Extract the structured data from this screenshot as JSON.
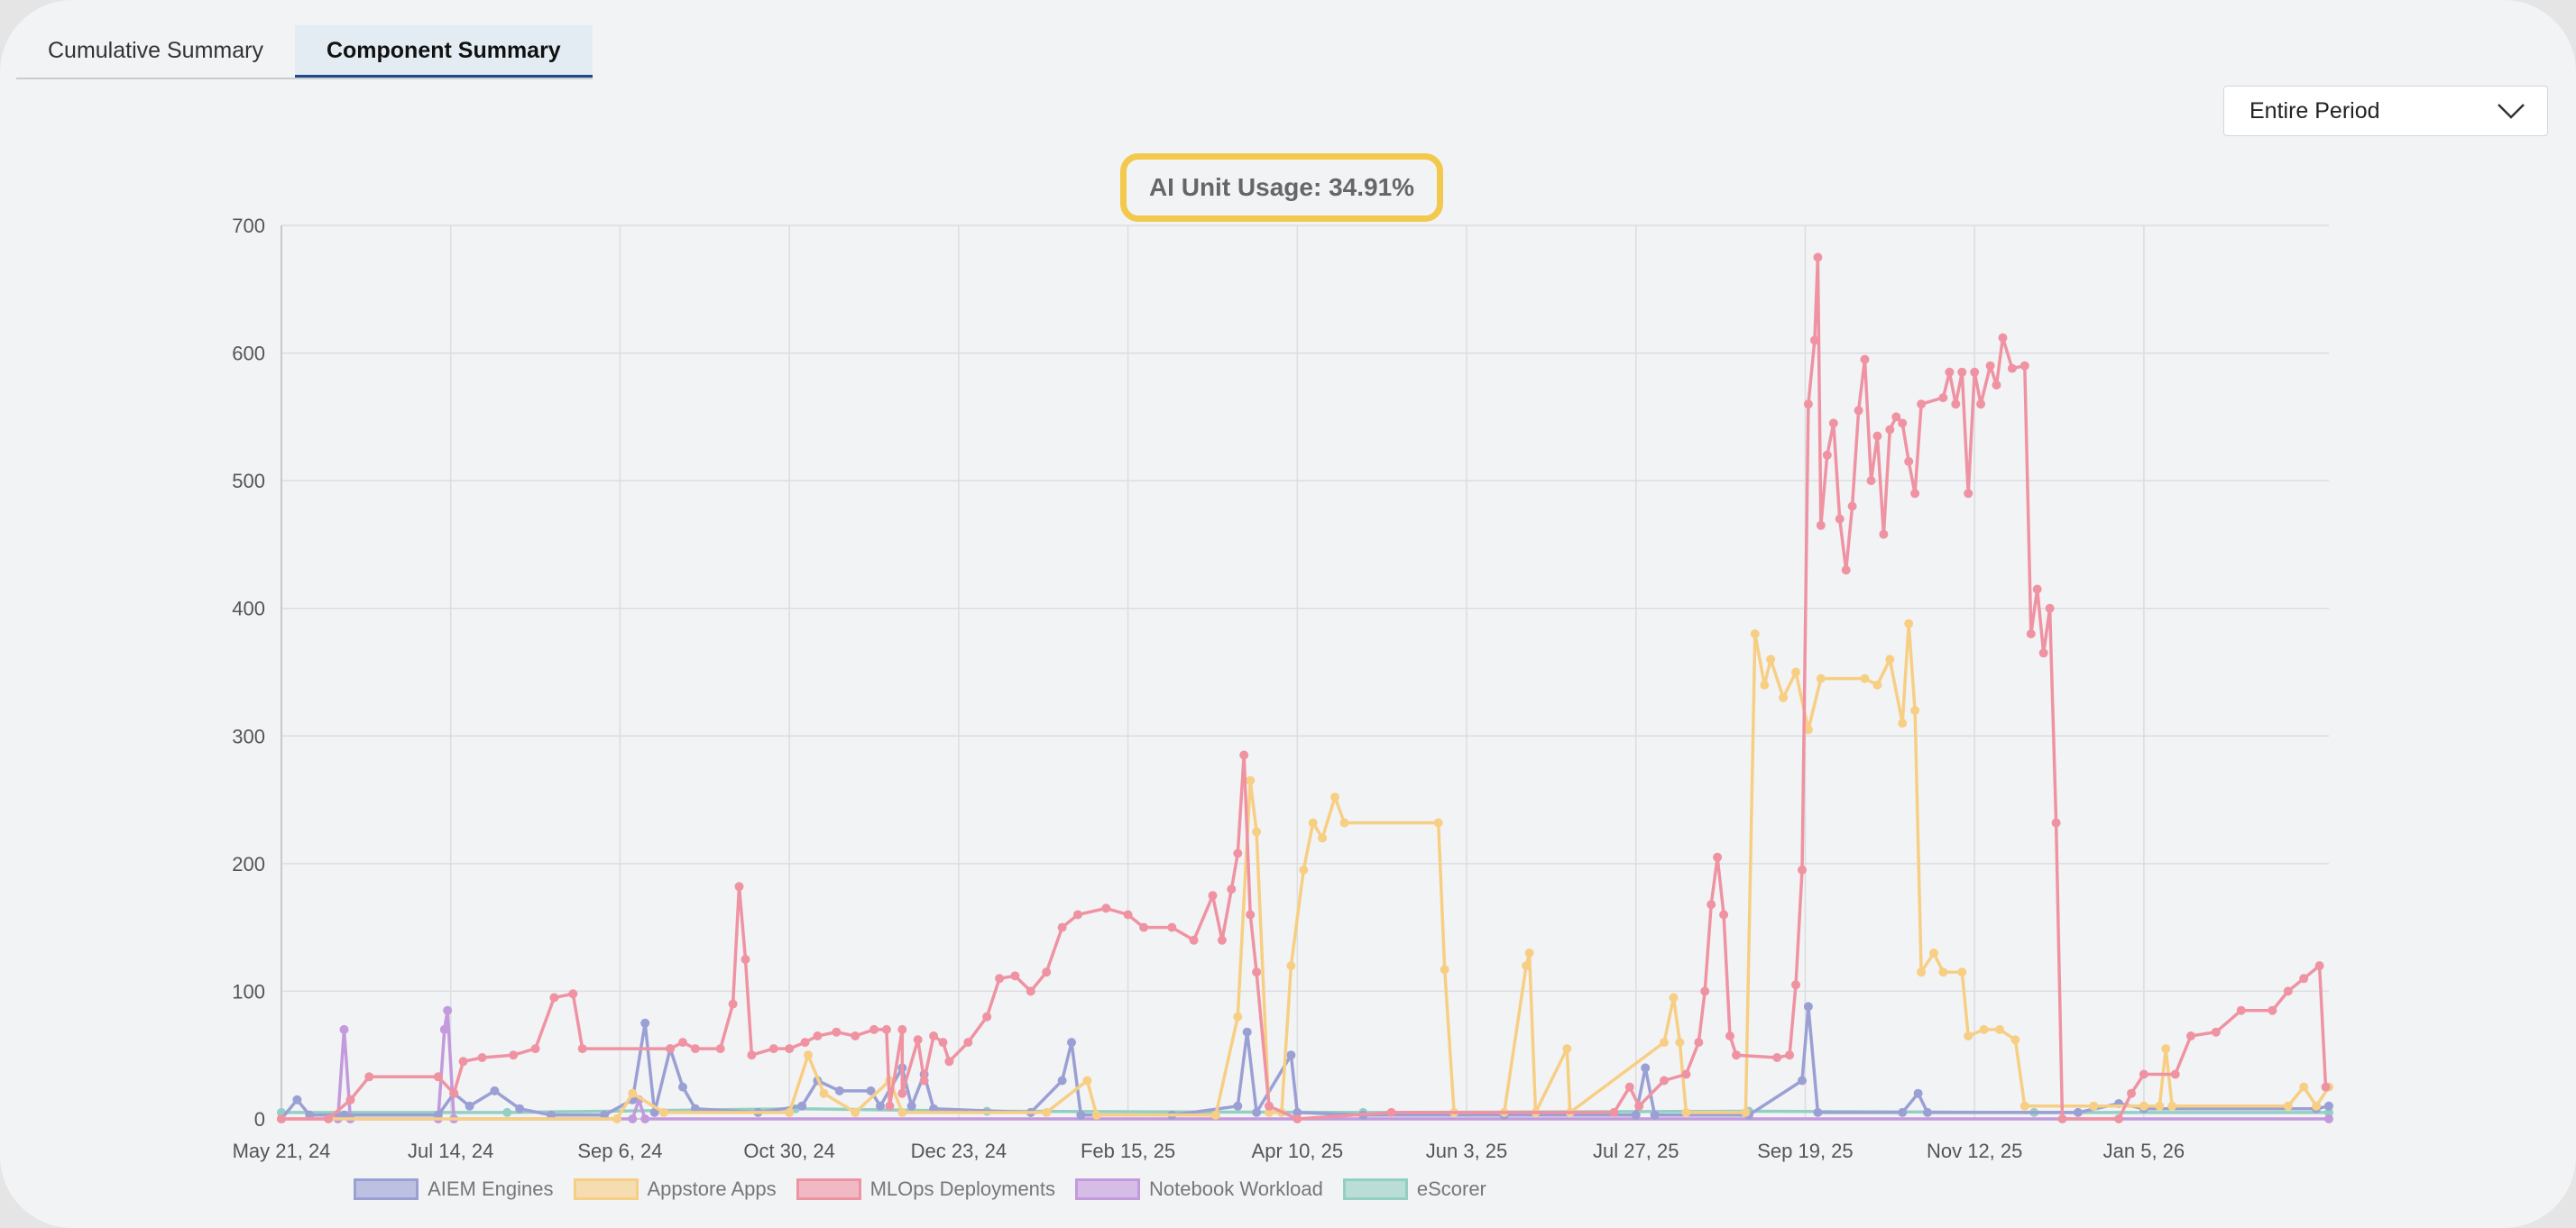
{
  "tabs": [
    {
      "label": "Cumulative Summary",
      "active": false
    },
    {
      "label": "Component Summary",
      "active": true
    }
  ],
  "period_select": {
    "value": "Entire Period"
  },
  "chart_data": {
    "type": "line",
    "title": "AI Unit Usage: 34.91%",
    "xlabel": "",
    "ylabel": "",
    "x_range": [
      "2024-05-21",
      "2026-03-05"
    ],
    "ylim": [
      0,
      700
    ],
    "y_ticks": [
      0,
      100,
      200,
      300,
      400,
      500,
      600,
      700
    ],
    "x_ticks": [
      {
        "date": "2024-05-21",
        "label": "May 21, 24"
      },
      {
        "date": "2024-07-14",
        "label": "Jul 14, 24"
      },
      {
        "date": "2024-09-06",
        "label": "Sep 6, 24"
      },
      {
        "date": "2024-10-30",
        "label": "Oct 30, 24"
      },
      {
        "date": "2024-12-23",
        "label": "Dec 23, 24"
      },
      {
        "date": "2025-02-15",
        "label": "Feb 15, 25"
      },
      {
        "date": "2025-04-10",
        "label": "Apr 10, 25"
      },
      {
        "date": "2025-06-03",
        "label": "Jun 3, 25"
      },
      {
        "date": "2025-07-27",
        "label": "Jul 27, 25"
      },
      {
        "date": "2025-09-19",
        "label": "Sep 19, 25"
      },
      {
        "date": "2025-11-12",
        "label": "Nov 12, 25"
      },
      {
        "date": "2026-01-05",
        "label": "Jan 5, 26"
      }
    ],
    "grid": true,
    "legend_position": "bottom",
    "series": [
      {
        "name": "AIEM Engines",
        "color": "#9aa0d4",
        "points": [
          [
            "2024-05-21",
            0
          ],
          [
            "2024-05-26",
            15
          ],
          [
            "2024-05-30",
            3
          ],
          [
            "2024-06-10",
            3
          ],
          [
            "2024-07-10",
            3
          ],
          [
            "2024-07-15",
            20
          ],
          [
            "2024-07-20",
            10
          ],
          [
            "2024-07-28",
            22
          ],
          [
            "2024-08-05",
            8
          ],
          [
            "2024-08-15",
            3
          ],
          [
            "2024-09-01",
            3
          ],
          [
            "2024-09-10",
            15
          ],
          [
            "2024-09-14",
            75
          ],
          [
            "2024-09-17",
            5
          ],
          [
            "2024-09-22",
            55
          ],
          [
            "2024-09-26",
            25
          ],
          [
            "2024-09-30",
            8
          ],
          [
            "2024-10-20",
            5
          ],
          [
            "2024-11-03",
            10
          ],
          [
            "2024-11-08",
            30
          ],
          [
            "2024-11-15",
            22
          ],
          [
            "2024-11-25",
            22
          ],
          [
            "2024-11-28",
            10
          ],
          [
            "2024-12-05",
            40
          ],
          [
            "2024-12-08",
            10
          ],
          [
            "2024-12-12",
            35
          ],
          [
            "2024-12-15",
            8
          ],
          [
            "2025-01-15",
            5
          ],
          [
            "2025-01-25",
            30
          ],
          [
            "2025-01-28",
            60
          ],
          [
            "2025-01-31",
            3
          ],
          [
            "2025-03-01",
            3
          ],
          [
            "2025-03-22",
            10
          ],
          [
            "2025-03-25",
            68
          ],
          [
            "2025-03-28",
            5
          ],
          [
            "2025-04-08",
            50
          ],
          [
            "2025-04-10",
            5
          ],
          [
            "2025-05-01",
            3
          ],
          [
            "2025-06-15",
            3
          ],
          [
            "2025-07-27",
            3
          ],
          [
            "2025-07-30",
            40
          ],
          [
            "2025-08-02",
            3
          ],
          [
            "2025-09-01",
            3
          ],
          [
            "2025-09-18",
            30
          ],
          [
            "2025-09-20",
            88
          ],
          [
            "2025-09-23",
            5
          ],
          [
            "2025-10-20",
            5
          ],
          [
            "2025-10-25",
            20
          ],
          [
            "2025-10-28",
            5
          ],
          [
            "2025-12-15",
            5
          ],
          [
            "2025-12-28",
            12
          ],
          [
            "2026-01-05",
            8
          ],
          [
            "2026-03-01",
            8
          ],
          [
            "2026-03-05",
            10
          ]
        ]
      },
      {
        "name": "Appstore Apps",
        "color": "#f7cf84",
        "points": [
          [
            "2024-05-21",
            0
          ],
          [
            "2024-09-05",
            0
          ],
          [
            "2024-09-10",
            20
          ],
          [
            "2024-09-20",
            5
          ],
          [
            "2024-10-30",
            5
          ],
          [
            "2024-11-05",
            50
          ],
          [
            "2024-11-10",
            20
          ],
          [
            "2024-11-20",
            5
          ],
          [
            "2024-12-01",
            30
          ],
          [
            "2024-12-05",
            5
          ],
          [
            "2025-01-20",
            5
          ],
          [
            "2025-02-02",
            30
          ],
          [
            "2025-02-05",
            3
          ],
          [
            "2025-03-15",
            3
          ],
          [
            "2025-03-22",
            80
          ],
          [
            "2025-03-26",
            265
          ],
          [
            "2025-03-28",
            225
          ],
          [
            "2025-04-01",
            5
          ],
          [
            "2025-04-05",
            5
          ],
          [
            "2025-04-08",
            120
          ],
          [
            "2025-04-12",
            195
          ],
          [
            "2025-04-15",
            232
          ],
          [
            "2025-04-18",
            220
          ],
          [
            "2025-04-22",
            252
          ],
          [
            "2025-04-25",
            232
          ],
          [
            "2025-05-25",
            232
          ],
          [
            "2025-05-27",
            117
          ],
          [
            "2025-05-30",
            5
          ],
          [
            "2025-06-15",
            5
          ],
          [
            "2025-06-22",
            120
          ],
          [
            "2025-06-23",
            130
          ],
          [
            "2025-06-25",
            5
          ],
          [
            "2025-07-05",
            55
          ],
          [
            "2025-07-06",
            5
          ],
          [
            "2025-08-05",
            60
          ],
          [
            "2025-08-08",
            95
          ],
          [
            "2025-08-10",
            60
          ],
          [
            "2025-08-12",
            5
          ],
          [
            "2025-08-31",
            5
          ],
          [
            "2025-09-03",
            380
          ],
          [
            "2025-09-06",
            340
          ],
          [
            "2025-09-08",
            360
          ],
          [
            "2025-09-12",
            330
          ],
          [
            "2025-09-16",
            350
          ],
          [
            "2025-09-20",
            305
          ],
          [
            "2025-09-24",
            345
          ],
          [
            "2025-10-08",
            345
          ],
          [
            "2025-10-12",
            340
          ],
          [
            "2025-10-16",
            360
          ],
          [
            "2025-10-20",
            310
          ],
          [
            "2025-10-22",
            388
          ],
          [
            "2025-10-24",
            320
          ],
          [
            "2025-10-26",
            115
          ],
          [
            "2025-10-30",
            130
          ],
          [
            "2025-11-02",
            115
          ],
          [
            "2025-11-08",
            115
          ],
          [
            "2025-11-10",
            65
          ],
          [
            "2025-11-15",
            70
          ],
          [
            "2025-11-20",
            70
          ],
          [
            "2025-11-25",
            62
          ],
          [
            "2025-11-28",
            10
          ],
          [
            "2025-12-20",
            10
          ],
          [
            "2026-01-05",
            10
          ],
          [
            "2026-01-10",
            10
          ],
          [
            "2026-01-12",
            55
          ],
          [
            "2026-01-14",
            10
          ],
          [
            "2026-02-20",
            10
          ],
          [
            "2026-02-25",
            25
          ],
          [
            "2026-03-01",
            10
          ],
          [
            "2026-03-05",
            25
          ]
        ]
      },
      {
        "name": "MLOps Deployments",
        "color": "#ef93a3",
        "points": [
          [
            "2024-05-21",
            0
          ],
          [
            "2024-06-05",
            0
          ],
          [
            "2024-06-12",
            15
          ],
          [
            "2024-06-18",
            33
          ],
          [
            "2024-07-10",
            33
          ],
          [
            "2024-07-15",
            20
          ],
          [
            "2024-07-18",
            45
          ],
          [
            "2024-07-24",
            48
          ],
          [
            "2024-08-03",
            50
          ],
          [
            "2024-08-10",
            55
          ],
          [
            "2024-08-16",
            95
          ],
          [
            "2024-08-22",
            98
          ],
          [
            "2024-08-25",
            55
          ],
          [
            "2024-09-22",
            55
          ],
          [
            "2024-09-26",
            60
          ],
          [
            "2024-09-30",
            55
          ],
          [
            "2024-10-08",
            55
          ],
          [
            "2024-10-12",
            90
          ],
          [
            "2024-10-14",
            182
          ],
          [
            "2024-10-16",
            125
          ],
          [
            "2024-10-18",
            50
          ],
          [
            "2024-10-25",
            55
          ],
          [
            "2024-10-30",
            55
          ],
          [
            "2024-11-04",
            60
          ],
          [
            "2024-11-08",
            65
          ],
          [
            "2024-11-14",
            68
          ],
          [
            "2024-11-20",
            65
          ],
          [
            "2024-11-26",
            70
          ],
          [
            "2024-12-05",
            70
          ],
          [
            "2024-12-10",
            62
          ],
          [
            "2024-12-15",
            65
          ],
          [
            "2024-12-18",
            60
          ],
          [
            "2024-11-30",
            70
          ],
          [
            "2024-12-01",
            10
          ],
          [
            "2024-12-05",
            20
          ],
          [
            "2024-12-12",
            30
          ],
          [
            "2024-12-20",
            45
          ],
          [
            "2024-12-26",
            60
          ],
          [
            "2025-01-01",
            80
          ],
          [
            "2025-01-05",
            110
          ],
          [
            "2025-01-10",
            112
          ],
          [
            "2025-01-15",
            100
          ],
          [
            "2025-01-20",
            115
          ],
          [
            "2025-01-25",
            150
          ],
          [
            "2025-01-30",
            160
          ],
          [
            "2025-02-08",
            165
          ],
          [
            "2025-02-15",
            160
          ],
          [
            "2025-02-20",
            150
          ],
          [
            "2025-03-01",
            150
          ],
          [
            "2025-03-08",
            140
          ],
          [
            "2025-03-14",
            175
          ],
          [
            "2025-03-17",
            140
          ],
          [
            "2025-03-20",
            180
          ],
          [
            "2025-03-22",
            208
          ],
          [
            "2025-03-24",
            285
          ],
          [
            "2025-03-26",
            160
          ],
          [
            "2025-03-28",
            115
          ],
          [
            "2025-04-01",
            10
          ],
          [
            "2025-04-10",
            0
          ],
          [
            "2025-05-10",
            5
          ],
          [
            "2025-07-20",
            5
          ],
          [
            "2025-07-25",
            25
          ],
          [
            "2025-07-28",
            10
          ],
          [
            "2025-08-05",
            30
          ],
          [
            "2025-08-12",
            35
          ],
          [
            "2025-08-16",
            60
          ],
          [
            "2025-08-18",
            100
          ],
          [
            "2025-08-20",
            168
          ],
          [
            "2025-08-22",
            205
          ],
          [
            "2025-08-24",
            160
          ],
          [
            "2025-08-26",
            65
          ],
          [
            "2025-08-28",
            50
          ],
          [
            "2025-09-10",
            48
          ],
          [
            "2025-09-14",
            50
          ],
          [
            "2025-09-16",
            105
          ],
          [
            "2025-09-18",
            195
          ],
          [
            "2025-09-20",
            560
          ],
          [
            "2025-09-22",
            610
          ],
          [
            "2025-09-23",
            675
          ],
          [
            "2025-09-24",
            465
          ],
          [
            "2025-09-26",
            520
          ],
          [
            "2025-09-28",
            545
          ],
          [
            "2025-09-30",
            470
          ],
          [
            "2025-10-02",
            430
          ],
          [
            "2025-10-04",
            480
          ],
          [
            "2025-10-06",
            555
          ],
          [
            "2025-10-08",
            595
          ],
          [
            "2025-10-10",
            500
          ],
          [
            "2025-10-12",
            535
          ],
          [
            "2025-10-14",
            458
          ],
          [
            "2025-10-16",
            540
          ],
          [
            "2025-10-18",
            550
          ],
          [
            "2025-10-20",
            545
          ],
          [
            "2025-10-22",
            515
          ],
          [
            "2025-10-24",
            490
          ],
          [
            "2025-10-26",
            560
          ],
          [
            "2025-11-02",
            565
          ],
          [
            "2025-11-04",
            585
          ],
          [
            "2025-11-06",
            560
          ],
          [
            "2025-11-08",
            585
          ],
          [
            "2025-11-10",
            490
          ],
          [
            "2025-11-12",
            585
          ],
          [
            "2025-11-14",
            560
          ],
          [
            "2025-11-17",
            590
          ],
          [
            "2025-11-19",
            575
          ],
          [
            "2025-11-21",
            612
          ],
          [
            "2025-11-24",
            588
          ],
          [
            "2025-11-28",
            590
          ],
          [
            "2025-11-30",
            380
          ],
          [
            "2025-12-02",
            415
          ],
          [
            "2025-12-04",
            365
          ],
          [
            "2025-12-06",
            400
          ],
          [
            "2025-12-08",
            232
          ],
          [
            "2025-12-10",
            0
          ],
          [
            "2025-12-28",
            0
          ],
          [
            "2026-01-01",
            20
          ],
          [
            "2026-01-05",
            35
          ],
          [
            "2026-01-15",
            35
          ],
          [
            "2026-01-20",
            65
          ],
          [
            "2026-01-28",
            68
          ],
          [
            "2026-02-05",
            85
          ],
          [
            "2026-02-15",
            85
          ],
          [
            "2026-02-20",
            100
          ],
          [
            "2026-02-25",
            110
          ],
          [
            "2026-03-02",
            120
          ],
          [
            "2026-03-04",
            25
          ]
        ]
      },
      {
        "name": "Notebook Workload",
        "color": "#c39adc",
        "points": [
          [
            "2024-05-21",
            0
          ],
          [
            "2024-06-08",
            0
          ],
          [
            "2024-06-10",
            70
          ],
          [
            "2024-06-12",
            0
          ],
          [
            "2024-07-10",
            0
          ],
          [
            "2024-07-12",
            70
          ],
          [
            "2024-07-13",
            85
          ],
          [
            "2024-07-15",
            0
          ],
          [
            "2024-09-10",
            0
          ],
          [
            "2024-09-12",
            15
          ],
          [
            "2024-09-14",
            0
          ],
          [
            "2026-03-05",
            0
          ]
        ]
      },
      {
        "name": "eScorer",
        "color": "#94cfc4",
        "points": [
          [
            "2024-05-21",
            5
          ],
          [
            "2024-08-01",
            5
          ],
          [
            "2024-11-01",
            8
          ],
          [
            "2025-01-01",
            6
          ],
          [
            "2025-05-01",
            5
          ],
          [
            "2025-09-01",
            6
          ],
          [
            "2025-12-01",
            5
          ],
          [
            "2026-03-05",
            5
          ]
        ]
      }
    ]
  }
}
